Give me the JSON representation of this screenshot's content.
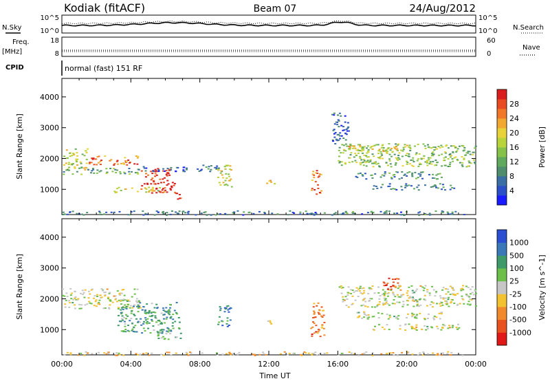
{
  "header": {
    "station": "Kodiak (fitACF)",
    "beam": "Beam 07",
    "date": "24/Aug/2012"
  },
  "sky_panel": {
    "left_label": "N.Sky",
    "right_label": "N.Search",
    "left_ticks": [
      "10^5",
      "10^0"
    ],
    "right_ticks": [
      "10^5",
      "10^0"
    ]
  },
  "freq_panel": {
    "left_label_top": "Freq.",
    "left_label_bottom": "[MHz]",
    "right_label": "Nave",
    "left_ticks": [
      "18",
      "8"
    ],
    "right_ticks": [
      "60",
      "0"
    ]
  },
  "cpid_panel": {
    "label": "CPID",
    "text": "normal (fast) 151 RF"
  },
  "chart_data": [
    {
      "type": "heatmap",
      "parameter": "Power",
      "ylabel": "Slant Range [km]",
      "ylim": [
        180,
        4600
      ],
      "yticks": [
        1000,
        2000,
        3000,
        4000
      ],
      "xlim_hours": [
        0,
        24
      ],
      "colorbar_label": "Power [dB]",
      "colorbar_ticks": [
        "4",
        "8",
        "12",
        "16",
        "20",
        "24",
        "28"
      ],
      "colorbar_colors": [
        "#1a1aff",
        "#2c4fc8",
        "#3a6ea5",
        "#4f8d6e",
        "#61a85f",
        "#86c24a",
        "#b8d43a",
        "#e8d23a",
        "#f0a830",
        "#f07828",
        "#e84a22",
        "#d81e1e"
      ],
      "patches": [
        {
          "t0": 0,
          "t1": 1.5,
          "r0": 1650,
          "r1": 2350,
          "level": 0.55
        },
        {
          "t0": 1.5,
          "t1": 4.5,
          "r0": 1800,
          "r1": 2100,
          "level": 0.8
        },
        {
          "t0": 4.5,
          "t1": 6.5,
          "r0": 900,
          "r1": 1700,
          "level": 0.95
        },
        {
          "t0": 6.5,
          "t1": 7.0,
          "r0": 700,
          "r1": 950,
          "level": 0.9
        },
        {
          "t0": 0,
          "t1": 4.5,
          "r0": 1500,
          "r1": 1700,
          "level": 0.4
        },
        {
          "t0": 3.0,
          "t1": 6.0,
          "r0": 900,
          "r1": 1100,
          "level": 0.55
        },
        {
          "t0": 4.5,
          "t1": 9.5,
          "r0": 1600,
          "r1": 1800,
          "level": 0.2
        },
        {
          "t0": 9.0,
          "t1": 9.8,
          "r0": 1100,
          "r1": 1800,
          "level": 0.6
        },
        {
          "t0": 11.8,
          "t1": 12.3,
          "r0": 1200,
          "r1": 1350,
          "level": 0.7
        },
        {
          "t0": 14.4,
          "t1": 15.0,
          "r0": 800,
          "r1": 1700,
          "level": 0.8
        },
        {
          "t0": 16.0,
          "t1": 24.0,
          "r0": 1750,
          "r1": 2500,
          "level": 0.45
        },
        {
          "t0": 16.2,
          "t1": 20.0,
          "r0": 2200,
          "r1": 2450,
          "level": 0.6
        },
        {
          "t0": 17.0,
          "t1": 22.0,
          "r0": 1350,
          "r1": 1600,
          "level": 0.3
        },
        {
          "t0": 18.0,
          "t1": 23.0,
          "r0": 1000,
          "r1": 1200,
          "level": 0.25
        },
        {
          "t0": 15.6,
          "t1": 16.6,
          "r0": 2500,
          "r1": 3500,
          "level": 0.15
        },
        {
          "t0": 0,
          "t1": 24,
          "r0": 180,
          "r1": 320,
          "level": 0.25
        }
      ]
    },
    {
      "type": "heatmap",
      "parameter": "Velocity",
      "ylabel": "Slant Range [km]",
      "ylim": [
        180,
        4600
      ],
      "yticks": [
        1000,
        2000,
        3000,
        4000
      ],
      "xlim_hours": [
        0,
        24
      ],
      "xticks": [
        "00:00",
        "04:00",
        "08:00",
        "12:00",
        "16:00",
        "20:00",
        "00:00"
      ],
      "xlabel": "Time UT",
      "colorbar_label": "Velocity [m s^-1]",
      "colorbar_ticks": [
        "1000",
        "500",
        "100",
        "25",
        "-25",
        "-100",
        "-500",
        "-1000"
      ],
      "colorbar_colors": [
        "#2b4fd0",
        "#3a78b8",
        "#3f9a6a",
        "#6cc04a",
        "#c6c6c6",
        "#f2c230",
        "#f08a2a",
        "#e8521e",
        "#e01818"
      ],
      "patches": [
        {
          "t0": 0,
          "t1": 4.5,
          "r0": 1700,
          "r1": 2350,
          "level": 0.5
        },
        {
          "t0": 3.2,
          "t1": 6.8,
          "r0": 900,
          "r1": 1900,
          "level": 0.3
        },
        {
          "t0": 5.5,
          "t1": 7.0,
          "r0": 700,
          "r1": 1000,
          "level": 0.35
        },
        {
          "t0": 9.0,
          "t1": 9.8,
          "r0": 1100,
          "r1": 1800,
          "level": 0.2
        },
        {
          "t0": 11.8,
          "t1": 12.3,
          "r0": 1200,
          "r1": 1350,
          "level": 0.5
        },
        {
          "t0": 14.4,
          "t1": 15.2,
          "r0": 800,
          "r1": 1900,
          "level": 0.78
        },
        {
          "t0": 16.0,
          "t1": 24.0,
          "r0": 1750,
          "r1": 2450,
          "level": 0.5
        },
        {
          "t0": 18.6,
          "t1": 19.6,
          "r0": 2300,
          "r1": 2700,
          "level": 0.85
        },
        {
          "t0": 17.0,
          "t1": 22.0,
          "r0": 1350,
          "r1": 1600,
          "level": 0.5
        },
        {
          "t0": 18.0,
          "t1": 23.0,
          "r0": 1000,
          "r1": 1200,
          "level": 0.5
        },
        {
          "t0": 0,
          "t1": 24,
          "r0": 180,
          "r1": 300,
          "level": 0.6
        }
      ]
    }
  ]
}
